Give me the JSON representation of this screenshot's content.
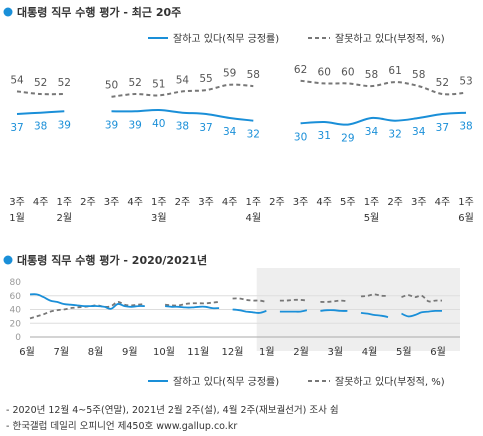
{
  "top": {
    "title": "대통령 직무 수행 평가 - 최근 20주",
    "legend_approve": "잘하고 있다(직무 긍정률)",
    "legend_disapprove": "잘못하고 있다(부정적, %)"
  },
  "bottom": {
    "title": "대통령 직무 수행 평가 - 2020/2021년",
    "legend_approve": "잘하고 있다(직무 긍정률)",
    "legend_disapprove": "잘못하고 있다(부정적, %)"
  },
  "footnotes": [
    "- 2020년 12월 4~5주(연말), 2021년 2월 2주(설), 4월 2주(재보궐선거) 조사 쉼",
    "- 한국갤럽 데일리 오피니언 제450호 www.gallup.co.kr"
  ],
  "colors": {
    "approve": "#1a8fd8",
    "disapprove": "#777777",
    "title_dot": "#1a8fd8",
    "shade": "#eeeeee"
  },
  "chart_data": [
    {
      "type": "line",
      "title": "대통령 직무 수행 평가 - 최근 20주",
      "categories": [
        "3주",
        "4주",
        "1주",
        "2주",
        "3주",
        "4주",
        "1주",
        "2주",
        "3주",
        "4주",
        "1주",
        "2주",
        "3주",
        "4주",
        "5주",
        "1주",
        "2주",
        "3주",
        "4주",
        "1주"
      ],
      "month_labels": [
        {
          "index": 0,
          "label": "1월"
        },
        {
          "index": 2,
          "label": "2월"
        },
        {
          "index": 6,
          "label": "3월"
        },
        {
          "index": 10,
          "label": "4월"
        },
        {
          "index": 15,
          "label": "5월"
        },
        {
          "index": 19,
          "label": "6월"
        }
      ],
      "series": [
        {
          "name": "잘하고 있다(직무 긍정률)",
          "values": [
            37,
            38,
            39,
            null,
            39,
            39,
            40,
            38,
            37,
            34,
            32,
            null,
            30,
            31,
            29,
            34,
            32,
            34,
            37,
            38
          ]
        },
        {
          "name": "잘못하고 있다(부정적, %)",
          "values": [
            54,
            52,
            52,
            null,
            50,
            52,
            51,
            54,
            55,
            59,
            58,
            null,
            62,
            60,
            60,
            58,
            61,
            58,
            52,
            53
          ]
        }
      ],
      "ylim": [
        20,
        70
      ]
    },
    {
      "type": "line",
      "title": "대통령 직무 수행 평가 - 2020/2021년",
      "x_labels": [
        "6월",
        "7월",
        "8월",
        "9월",
        "10월",
        "11월",
        "12월",
        "1월",
        "2월",
        "3월",
        "4월",
        "5월",
        "6월"
      ],
      "yticks": [
        0,
        20,
        40,
        60,
        80
      ],
      "ylim": [
        0,
        80
      ],
      "grid": true,
      "shaded_from_label": "1월",
      "series": [
        {
          "name": "잘하고 있다(직무 긍정률)",
          "values": [
            62,
            62,
            58,
            53,
            51,
            48,
            47,
            46,
            45,
            45,
            45,
            44,
            41,
            48,
            45,
            44,
            45,
            45,
            null,
            null,
            45,
            44,
            44,
            43,
            43,
            44,
            44,
            42,
            42,
            null,
            40,
            39,
            37,
            36,
            35,
            38,
            null,
            37,
            37,
            37,
            37,
            39,
            null,
            38,
            39,
            39,
            38,
            38,
            null,
            35,
            34,
            32,
            31,
            29,
            null,
            34,
            30,
            32,
            36,
            37,
            38,
            38
          ]
        },
        {
          "name": "잘못하고 있다(부정적, %)",
          "values": [
            27,
            30,
            33,
            37,
            39,
            40,
            42,
            43,
            44,
            45,
            46,
            44,
            45,
            51,
            47,
            46,
            47,
            48,
            null,
            null,
            47,
            46,
            46,
            48,
            49,
            49,
            49,
            50,
            51,
            null,
            56,
            56,
            54,
            53,
            53,
            51,
            null,
            53,
            53,
            54,
            54,
            53,
            null,
            51,
            51,
            52,
            53,
            52,
            null,
            59,
            60,
            62,
            60,
            60,
            null,
            58,
            61,
            58,
            60,
            52,
            53,
            53
          ]
        }
      ]
    }
  ]
}
